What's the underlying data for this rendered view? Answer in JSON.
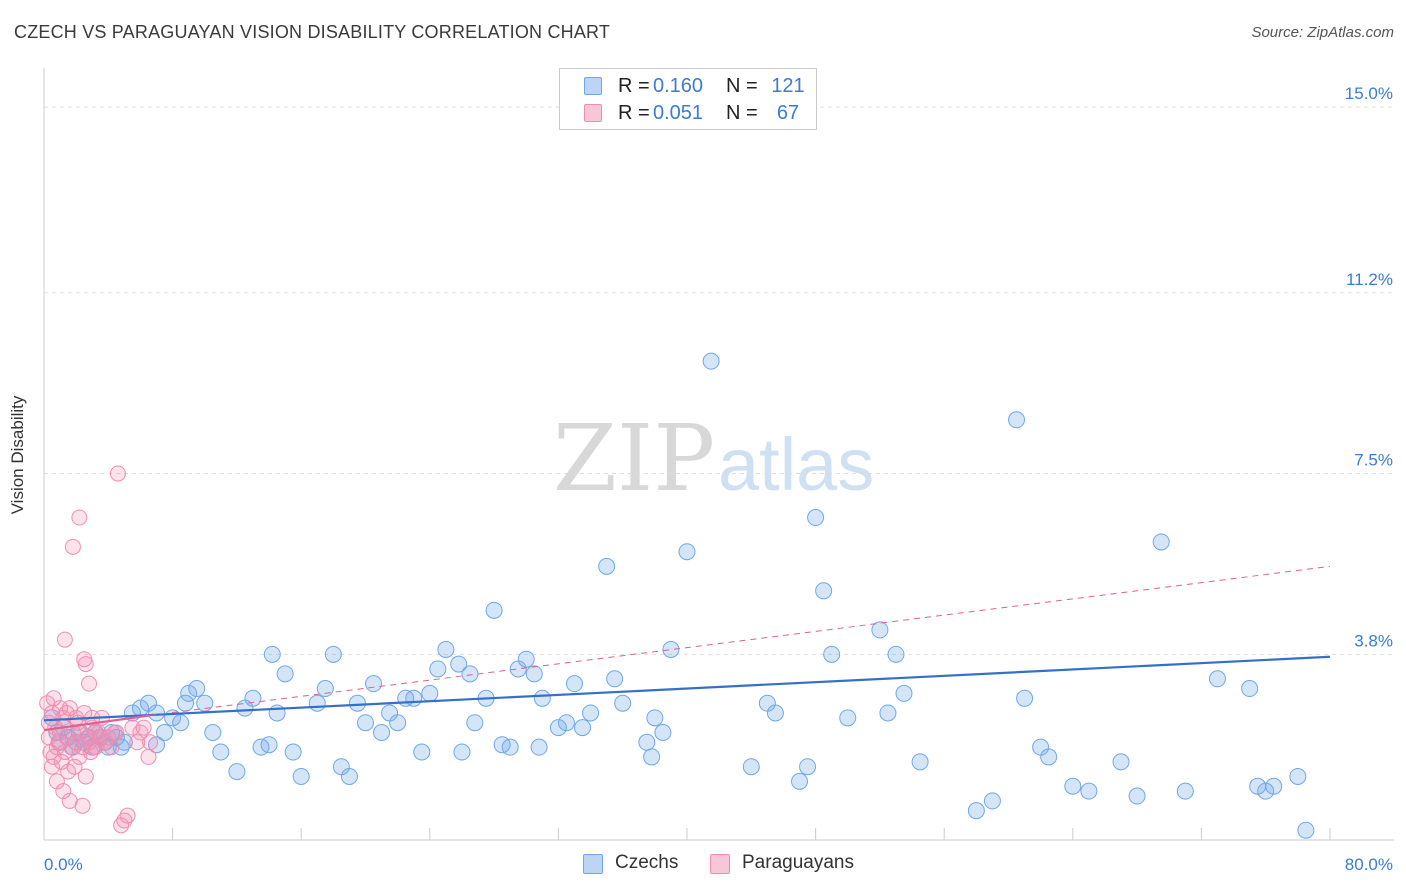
{
  "title": "CZECH VS PARAGUAYAN VISION DISABILITY CORRELATION CHART",
  "source": "Source: ZipAtlas.com",
  "watermark": {
    "zip": "ZIP",
    "atlas": "atlas"
  },
  "colors": {
    "czech": "#6fa8e8",
    "czech_line": "#3470c8",
    "paraguayan": "#f28db0",
    "paraguayan_line": "#e0608e",
    "tick_label": "#3a7bd5"
  },
  "legend": {
    "czech": {
      "r_label": "R =",
      "r_value": "0.160",
      "n_label": "N =",
      "n_value": "121"
    },
    "paraguayan": {
      "r_label": "R =",
      "r_value": "0.051",
      "n_label": "N =",
      "n_value": "67"
    }
  },
  "chart_data": {
    "type": "scatter",
    "title": "CZECH VS PARAGUAYAN VISION DISABILITY CORRELATION CHART",
    "xlabel": "",
    "ylabel": "Vision Disability",
    "xlim": [
      0,
      80
    ],
    "ylim": [
      0,
      15.8
    ],
    "y_ticks": [
      3.8,
      7.5,
      11.2,
      15.0
    ],
    "y_tick_labels": [
      "3.8%",
      "7.5%",
      "11.2%",
      "15.0%"
    ],
    "x_tick_labels": {
      "min": "0.0%",
      "max": "80.0%"
    },
    "legend_entries": [
      "Czechs",
      "Paraguayans"
    ],
    "series": [
      {
        "name": "Czechs",
        "r": 0.16,
        "n": 121,
        "trend": {
          "x": [
            0,
            80
          ],
          "y": [
            2.45,
            3.75
          ],
          "style": "solid"
        },
        "points": [
          [
            0.5,
            2.5
          ],
          [
            0.8,
            2.2
          ],
          [
            1.0,
            2.0
          ],
          [
            1.2,
            2.3
          ],
          [
            1.5,
            2.1
          ],
          [
            1.8,
            1.9
          ],
          [
            2.0,
            2.0
          ],
          [
            2.2,
            2.2
          ],
          [
            2.5,
            2.0
          ],
          [
            2.8,
            2.1
          ],
          [
            3.0,
            1.9
          ],
          [
            3.2,
            2.2
          ],
          [
            3.5,
            2.1
          ],
          [
            3.8,
            2.0
          ],
          [
            4.0,
            1.9
          ],
          [
            4.2,
            2.2
          ],
          [
            4.5,
            2.1
          ],
          [
            4.8,
            1.9
          ],
          [
            5.0,
            2.0
          ],
          [
            5.5,
            2.6
          ],
          [
            6.0,
            2.7
          ],
          [
            6.5,
            2.8
          ],
          [
            7.0,
            2.6
          ],
          [
            7.5,
            2.2
          ],
          [
            7.0,
            1.95
          ],
          [
            8.0,
            2.5
          ],
          [
            8.5,
            2.4
          ],
          [
            8.8,
            2.8
          ],
          [
            9.0,
            3.0
          ],
          [
            9.5,
            3.1
          ],
          [
            10.0,
            2.8
          ],
          [
            10.5,
            2.2
          ],
          [
            11.0,
            1.8
          ],
          [
            12.0,
            1.4
          ],
          [
            12.5,
            2.7
          ],
          [
            13.0,
            2.9
          ],
          [
            13.5,
            1.9
          ],
          [
            14.0,
            1.95
          ],
          [
            14.5,
            2.6
          ],
          [
            14.2,
            3.8
          ],
          [
            15.0,
            3.4
          ],
          [
            15.5,
            1.8
          ],
          [
            16.0,
            1.3
          ],
          [
            17.0,
            2.8
          ],
          [
            17.5,
            3.1
          ],
          [
            18.0,
            3.8
          ],
          [
            18.5,
            1.5
          ],
          [
            19.0,
            1.3
          ],
          [
            19.5,
            2.8
          ],
          [
            20.0,
            2.4
          ],
          [
            20.5,
            3.2
          ],
          [
            21.0,
            2.2
          ],
          [
            21.5,
            2.6
          ],
          [
            22.0,
            2.4
          ],
          [
            22.5,
            2.9
          ],
          [
            23.0,
            2.9
          ],
          [
            23.5,
            1.8
          ],
          [
            24.0,
            3.0
          ],
          [
            24.5,
            3.5
          ],
          [
            25.0,
            3.9
          ],
          [
            25.8,
            3.6
          ],
          [
            26.0,
            1.8
          ],
          [
            26.5,
            3.4
          ],
          [
            26.8,
            2.4
          ],
          [
            27.5,
            2.9
          ],
          [
            28.0,
            4.7
          ],
          [
            28.5,
            1.95
          ],
          [
            29.0,
            1.9
          ],
          [
            29.5,
            3.5
          ],
          [
            30.0,
            3.7
          ],
          [
            30.5,
            3.4
          ],
          [
            30.8,
            1.9
          ],
          [
            31.0,
            2.9
          ],
          [
            32.0,
            2.3
          ],
          [
            32.5,
            2.4
          ],
          [
            33.0,
            3.2
          ],
          [
            33.5,
            2.3
          ],
          [
            34.0,
            2.6
          ],
          [
            35.0,
            5.6
          ],
          [
            35.5,
            3.3
          ],
          [
            36.0,
            2.8
          ],
          [
            37.5,
            2.0
          ],
          [
            37.8,
            1.7
          ],
          [
            38.0,
            2.5
          ],
          [
            38.5,
            2.2
          ],
          [
            39.0,
            3.9
          ],
          [
            40.0,
            5.9
          ],
          [
            41.5,
            9.8
          ],
          [
            44.0,
            1.5
          ],
          [
            45.0,
            2.8
          ],
          [
            45.5,
            2.6
          ],
          [
            47.0,
            1.2
          ],
          [
            47.5,
            1.5
          ],
          [
            48.0,
            6.6
          ],
          [
            48.5,
            5.1
          ],
          [
            49.0,
            3.8
          ],
          [
            50.0,
            2.5
          ],
          [
            52.0,
            4.3
          ],
          [
            52.5,
            2.6
          ],
          [
            53.0,
            3.8
          ],
          [
            53.5,
            3.0
          ],
          [
            54.5,
            1.6
          ],
          [
            58.0,
            0.6
          ],
          [
            59.0,
            0.8
          ],
          [
            60.5,
            8.6
          ],
          [
            61.0,
            2.9
          ],
          [
            62.0,
            1.9
          ],
          [
            62.5,
            1.7
          ],
          [
            64.0,
            1.1
          ],
          [
            65.0,
            1.0
          ],
          [
            67.0,
            1.6
          ],
          [
            68.0,
            0.9
          ],
          [
            69.5,
            6.1
          ],
          [
            71.0,
            1.0
          ],
          [
            73.0,
            3.3
          ],
          [
            75.0,
            3.1
          ],
          [
            75.5,
            1.1
          ],
          [
            76.0,
            1.0
          ],
          [
            76.5,
            1.1
          ],
          [
            78.0,
            1.3
          ],
          [
            78.5,
            0.2
          ]
        ]
      },
      {
        "name": "Paraguayans",
        "r": 0.051,
        "n": 67,
        "trend": {
          "x": [
            0,
            6.6
          ],
          "y": [
            2.25,
            2.55
          ],
          "style": "solid"
        },
        "trend_ext": {
          "x": [
            6.6,
            80
          ],
          "y": [
            2.55,
            5.6
          ],
          "style": "dashed"
        },
        "points": [
          [
            0.3,
            2.1
          ],
          [
            0.4,
            1.8
          ],
          [
            0.5,
            2.6
          ],
          [
            0.6,
            1.7
          ],
          [
            0.7,
            2.3
          ],
          [
            0.8,
            1.9
          ],
          [
            0.9,
            2.0
          ],
          [
            1.0,
            2.2
          ],
          [
            1.1,
            1.6
          ],
          [
            1.2,
            2.5
          ],
          [
            1.3,
            1.8
          ],
          [
            1.4,
            2.1
          ],
          [
            1.5,
            1.4
          ],
          [
            1.6,
            2.7
          ],
          [
            1.7,
            1.9
          ],
          [
            1.8,
            2.2
          ],
          [
            1.9,
            1.5
          ],
          [
            2.0,
            2.0
          ],
          [
            2.1,
            2.4
          ],
          [
            2.2,
            1.7
          ],
          [
            2.3,
            2.2
          ],
          [
            2.4,
            1.9
          ],
          [
            2.5,
            2.6
          ],
          [
            2.6,
            1.3
          ],
          [
            2.7,
            2.1
          ],
          [
            2.8,
            2.0
          ],
          [
            2.9,
            1.8
          ],
          [
            3.0,
            2.3
          ],
          [
            3.1,
            1.9
          ],
          [
            3.2,
            2.2
          ],
          [
            0.2,
            2.8
          ],
          [
            0.3,
            2.4
          ],
          [
            0.5,
            1.5
          ],
          [
            0.6,
            2.9
          ],
          [
            0.8,
            1.2
          ],
          [
            1.0,
            2.7
          ],
          [
            1.2,
            1.0
          ],
          [
            1.3,
            4.1
          ],
          [
            1.4,
            2.6
          ],
          [
            1.6,
            0.8
          ],
          [
            1.8,
            6.0
          ],
          [
            2.0,
            2.5
          ],
          [
            2.2,
            6.6
          ],
          [
            2.4,
            0.7
          ],
          [
            2.5,
            3.7
          ],
          [
            2.6,
            3.6
          ],
          [
            2.8,
            3.2
          ],
          [
            3.0,
            2.5
          ],
          [
            3.2,
            1.9
          ],
          [
            3.4,
            2.2
          ],
          [
            3.5,
            2.1
          ],
          [
            3.6,
            2.5
          ],
          [
            3.8,
            2.0
          ],
          [
            4.0,
            2.1
          ],
          [
            4.2,
            1.9
          ],
          [
            4.5,
            2.2
          ],
          [
            4.6,
            7.5
          ],
          [
            4.8,
            0.3
          ],
          [
            5.0,
            0.4
          ],
          [
            5.5,
            2.3
          ],
          [
            5.8,
            2.0
          ],
          [
            6.0,
            2.2
          ],
          [
            6.2,
            2.3
          ],
          [
            6.5,
            1.7
          ],
          [
            6.6,
            2.0
          ],
          [
            5.2,
            0.5
          ],
          [
            4.4,
            2.2
          ]
        ]
      }
    ]
  }
}
